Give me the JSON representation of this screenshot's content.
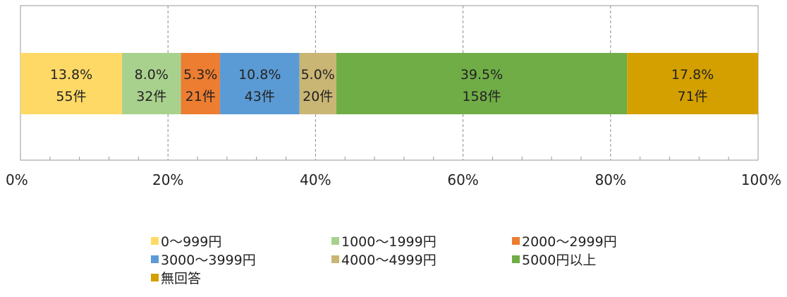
{
  "chart_data": {
    "type": "bar",
    "orientation": "horizontal-stacked-100",
    "series": [
      {
        "name": "0～999円",
        "value": 13.8,
        "label": "13.8%",
        "count": "55件",
        "color": "#FFD966"
      },
      {
        "name": "1000～1999円",
        "value": 8.0,
        "label": "8.0%",
        "count": "32件",
        "color": "#A9D18E"
      },
      {
        "name": "2000～2999円",
        "value": 5.3,
        "label": "5.3%",
        "count": "21件",
        "color": "#ED7D31"
      },
      {
        "name": "3000～3999円",
        "value": 10.8,
        "label": "10.8%",
        "count": "43件",
        "color": "#5B9BD5"
      },
      {
        "name": "4000～4999円",
        "value": 5.0,
        "label": "5.0%",
        "count": "20件",
        "color": "#C9B574"
      },
      {
        "name": "5000円以上",
        "value": 39.5,
        "label": "39.5%",
        "count": "158件",
        "color": "#70AD47"
      },
      {
        "name": "無回答",
        "value": 17.8,
        "label": "17.8%",
        "count": "71件",
        "color": "#D4A000"
      }
    ],
    "xlim": [
      0,
      100
    ],
    "x_ticks": [
      "0%",
      "20%",
      "40%",
      "60%",
      "80%",
      "100%"
    ],
    "grid": true,
    "legend_position": "bottom"
  }
}
